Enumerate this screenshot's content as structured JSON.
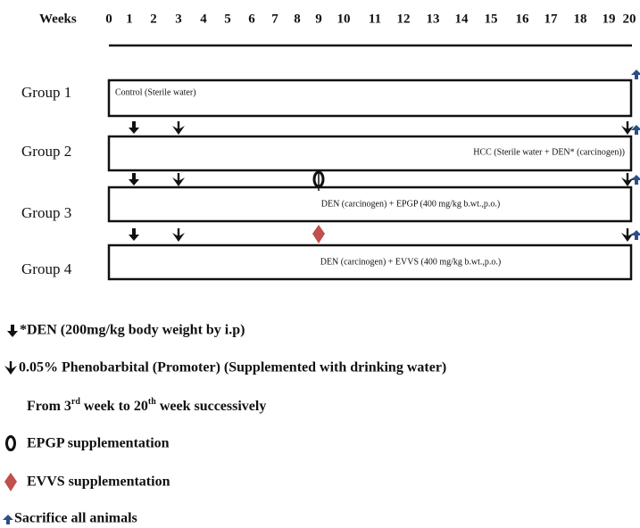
{
  "timeline": {
    "label": "Weeks",
    "weeks": [
      0,
      1,
      2,
      3,
      4,
      5,
      6,
      7,
      8,
      9,
      10,
      11,
      12,
      13,
      14,
      15,
      16,
      17,
      18,
      19,
      20
    ]
  },
  "groups": [
    {
      "name": "Group 1",
      "treatment": "Control (Sterile water)"
    },
    {
      "name": "Group 2",
      "treatment": "HCC (Sterile water + DEN* (carcinogen))"
    },
    {
      "name": "Group 3",
      "treatment": "DEN (carcinogen) + EPGP (400 mg/kg b.wt.,p.o.)"
    },
    {
      "name": "Group 4",
      "treatment": "DEN (carcinogen) + EVVS (400 mg/kg b.wt.,p.o.)"
    }
  ],
  "legend": [
    "*DEN (200mg/kg body weight by i.p)",
    "0.05% Phenobarbital (Promoter) (Supplemented with drinking water)",
    "EPGP supplementation",
    "EVVS supplementation",
    "Sacrifice all animals"
  ],
  "legend_note": [
    "From 3",
    "rd",
    " week to 20",
    "th",
    " week successively"
  ]
}
